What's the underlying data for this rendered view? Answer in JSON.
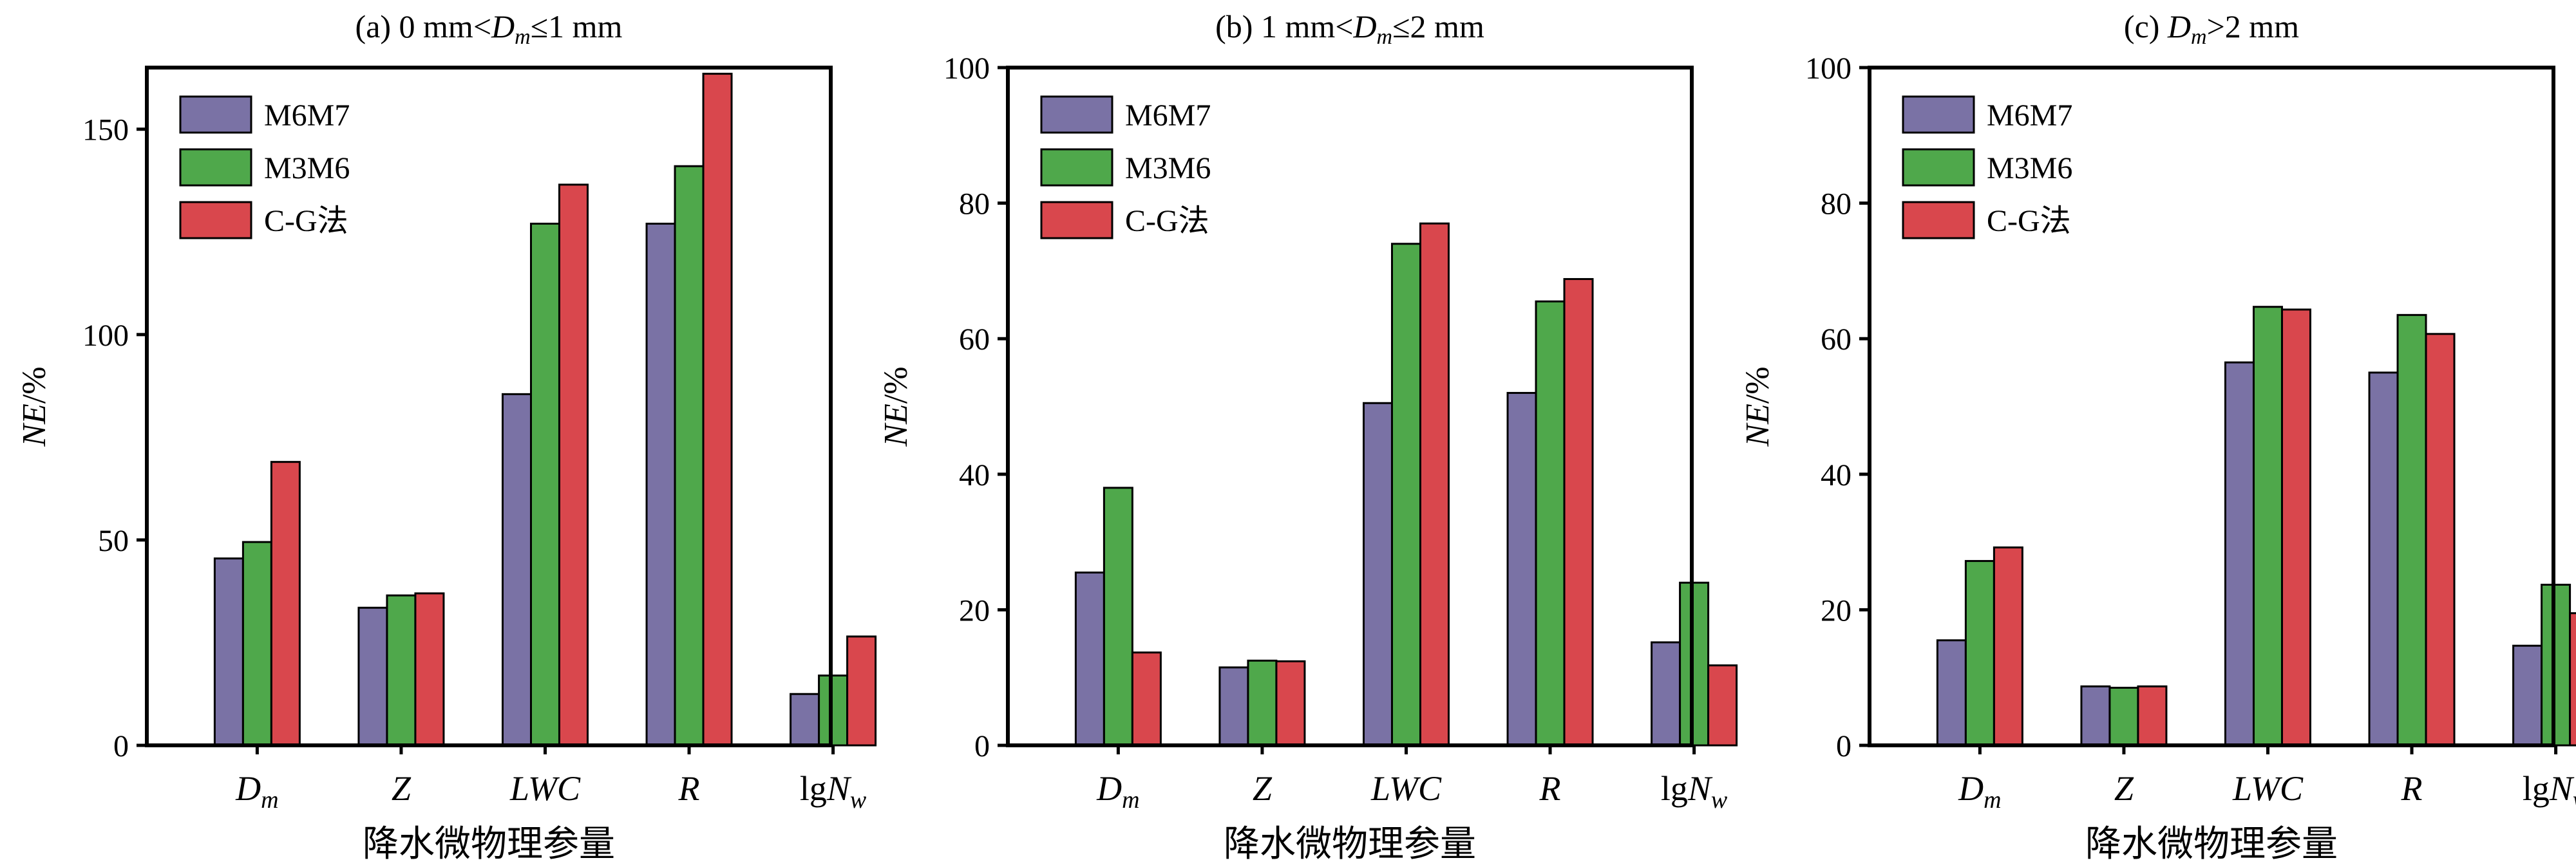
{
  "chart_data": [
    {
      "type": "bar",
      "title": "(a) 0 mm<Dm≤1 mm",
      "title_parts": {
        "pre": "(a) 0 mm<",
        "var": "D",
        "sub": "m",
        "post": "≤1 mm"
      },
      "xlabel": "降水微物理参量",
      "ylabel": "NE/%",
      "ylim": [
        0,
        165
      ],
      "yticks": [
        0,
        50,
        100,
        150
      ],
      "categories": [
        "Dm",
        "Z",
        "LWC",
        "R",
        "lgNw"
      ],
      "series": [
        {
          "name": "M6M7",
          "values": [
            45.5,
            33.5,
            85.5,
            127,
            12.5
          ]
        },
        {
          "name": "M3M6",
          "values": [
            49.5,
            36.5,
            127,
            141,
            17
          ]
        },
        {
          "name": "C-G法",
          "values": [
            69,
            37,
            136.5,
            163.5,
            26.5
          ]
        }
      ],
      "legend": "top-left"
    },
    {
      "type": "bar",
      "title": "(b) 1 mm<Dm≤2 mm",
      "title_parts": {
        "pre": "(b) 1 mm<",
        "var": "D",
        "sub": "m",
        "post": "≤2 mm"
      },
      "xlabel": "降水微物理参量",
      "ylabel": "NE/%",
      "ylim": [
        0,
        100
      ],
      "yticks": [
        0,
        20,
        40,
        60,
        80,
        100
      ],
      "categories": [
        "Dm",
        "Z",
        "LWC",
        "R",
        "lgNw"
      ],
      "series": [
        {
          "name": "M6M7",
          "values": [
            25.5,
            11.5,
            50.5,
            52,
            15.2
          ]
        },
        {
          "name": "M3M6",
          "values": [
            38,
            12.5,
            74,
            65.5,
            24
          ]
        },
        {
          "name": "C-G法",
          "values": [
            13.7,
            12.4,
            77,
            68.8,
            11.8
          ]
        }
      ],
      "legend": "top-left"
    },
    {
      "type": "bar",
      "title": "(c) Dm>2 mm",
      "title_parts": {
        "pre": "(c) ",
        "var": "D",
        "sub": "m",
        "post": ">2 mm"
      },
      "xlabel": "降水微物理参量",
      "ylabel": "NE/%",
      "ylim": [
        0,
        100
      ],
      "yticks": [
        0,
        20,
        40,
        60,
        80,
        100
      ],
      "categories": [
        "Dm",
        "Z",
        "LWC",
        "R",
        "lgNw"
      ],
      "series": [
        {
          "name": "M6M7",
          "values": [
            15.5,
            8.7,
            56.5,
            55,
            14.7
          ]
        },
        {
          "name": "M3M6",
          "values": [
            27.2,
            8.5,
            64.7,
            63.5,
            23.7
          ]
        },
        {
          "name": "C-G法",
          "values": [
            29.2,
            8.7,
            64.3,
            60.7,
            19.5
          ]
        }
      ],
      "legend": "top-left"
    }
  ],
  "colors": {
    "M6M7": "#7a72a5",
    "M3M6": "#4fa84b",
    "C-G法": "#d9474d"
  }
}
